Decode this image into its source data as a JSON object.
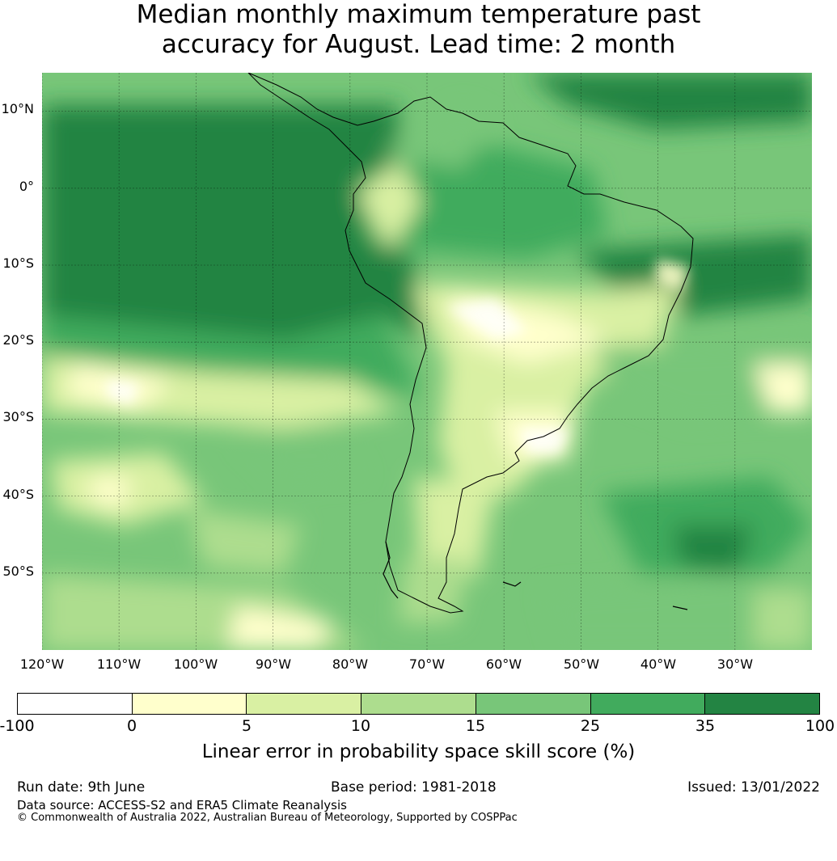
{
  "title_line1": "Median monthly maximum temperature past",
  "title_line2": "accuracy for August. Lead time: 2 month",
  "map": {
    "lat_labels": [
      "10°N",
      "0°",
      "10°S",
      "20°S",
      "30°S",
      "40°S",
      "50°S"
    ],
    "lon_labels": [
      "120°W",
      "110°W",
      "100°W",
      "90°W",
      "80°W",
      "70°W",
      "60°W",
      "50°W",
      "40°W",
      "30°W"
    ],
    "lat_values": [
      10,
      0,
      -10,
      -20,
      -30,
      -40,
      -50
    ],
    "lon_values": [
      -120,
      -110,
      -100,
      -90,
      -80,
      -70,
      -60,
      -50,
      -40,
      -30
    ],
    "lon_range": [
      -120,
      -20
    ],
    "lat_range": [
      -60,
      15
    ]
  },
  "colorbar": {
    "ticks": [
      "-100",
      "0",
      "5",
      "10",
      "15",
      "25",
      "35",
      "100"
    ],
    "colors": [
      "#ffffff",
      "#ffffcc",
      "#d9f0a3",
      "#addd8e",
      "#78c679",
      "#41ab5d",
      "#238443"
    ],
    "label": "Linear error in probability space skill score (%)"
  },
  "footer": {
    "run_date": "Run date: 9th June",
    "base_period": "Base period: 1981-2018",
    "issued": "Issued: 13/01/2022",
    "data_source": "Data source: ACCESS-S2 and ERA5 Climate Reanalysis",
    "copyright": "© Commonwealth of Australia 2022, Australian Bureau of Meteorology, Supported by COSPPac"
  }
}
